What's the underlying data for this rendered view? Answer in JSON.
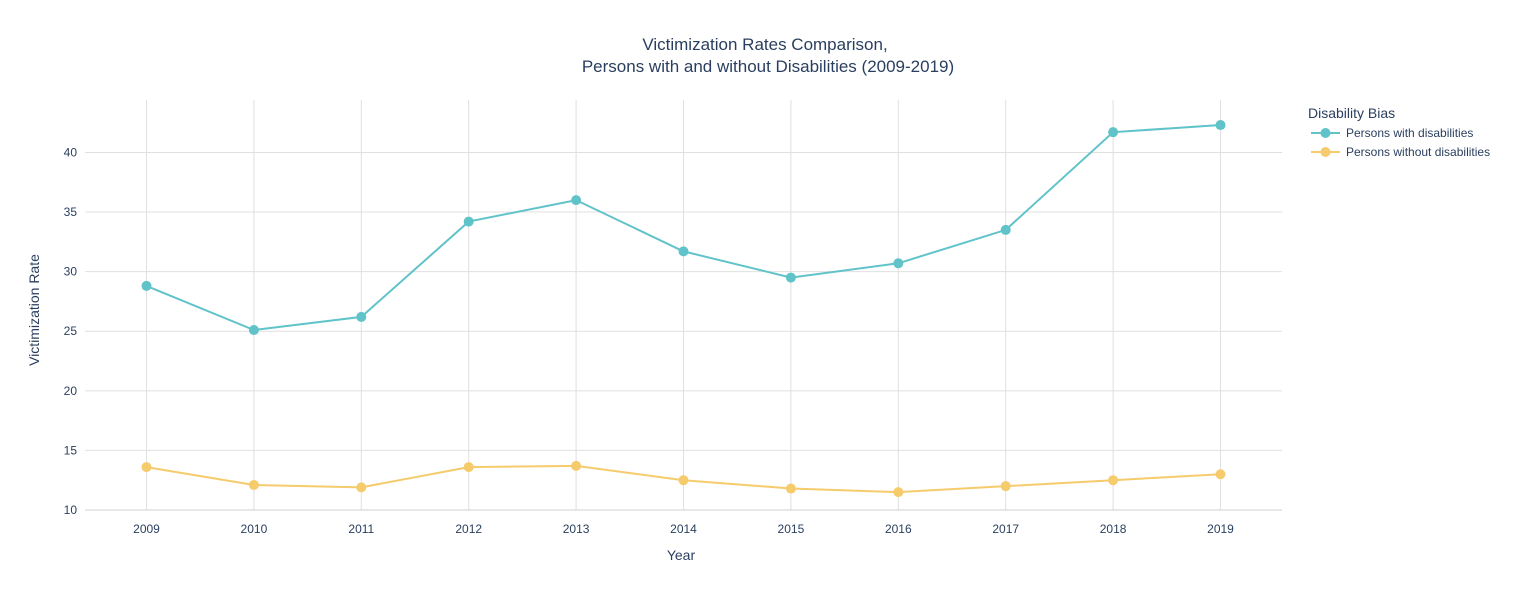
{
  "chart_data": {
    "type": "line",
    "title": {
      "line1": "Victimization Rates Comparison,",
      "line2": "Persons with and without Disabilities (2009-2019)"
    },
    "xlabel": "Year",
    "ylabel": "Victimization Rate",
    "x": [
      "2009",
      "2010",
      "2011",
      "2012",
      "2013",
      "2014",
      "2015",
      "2016",
      "2017",
      "2018",
      "2019"
    ],
    "yticks": [
      10,
      15,
      20,
      25,
      30,
      35,
      40
    ],
    "ylim": [
      10,
      44.4
    ],
    "grid": true,
    "legend": {
      "title": "Disability Bias",
      "placement": "top-right"
    },
    "series": [
      {
        "name": "Persons with disabilities",
        "color": "#5fc3c9",
        "values": [
          28.8,
          25.1,
          26.2,
          34.2,
          36.0,
          31.7,
          29.5,
          30.7,
          33.5,
          41.7,
          42.3
        ]
      },
      {
        "name": "Persons without disabilities",
        "color": "#f5cb6c",
        "values": [
          13.6,
          12.1,
          11.9,
          13.6,
          13.7,
          12.5,
          11.8,
          11.5,
          12.0,
          12.5,
          13.0
        ]
      }
    ]
  }
}
